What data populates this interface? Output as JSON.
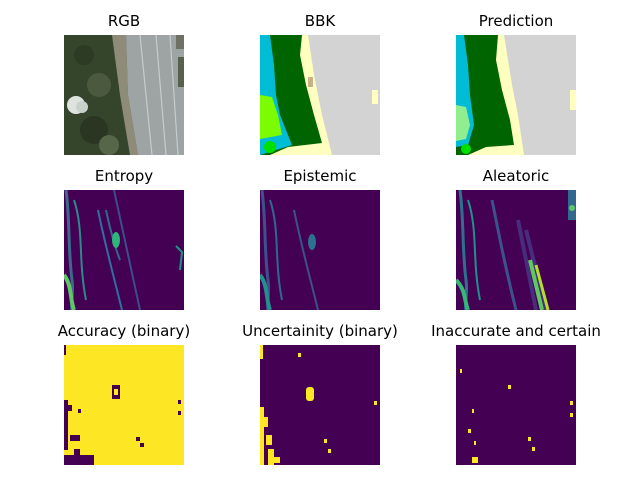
{
  "figure": {
    "panels": [
      {
        "title": "RGB"
      },
      {
        "title": "BBK"
      },
      {
        "title": "Prediction"
      },
      {
        "title": "Entropy"
      },
      {
        "title": "Epistemic"
      },
      {
        "title": "Aleatoric"
      },
      {
        "title": "Accuracy (binary)"
      },
      {
        "title": "Uncertainity (binary)"
      },
      {
        "title": "Inaccurate and certain"
      }
    ]
  },
  "colors": {
    "viridis_dark": "#440154",
    "viridis_yellow": "#fde725",
    "class_road": "#d3d3d3",
    "class_sand": "#ffffc0",
    "class_forest": "#006400",
    "class_water": "#00bcd4",
    "class_grass": "#7cfc00",
    "class_light_green": "#90ee90"
  }
}
